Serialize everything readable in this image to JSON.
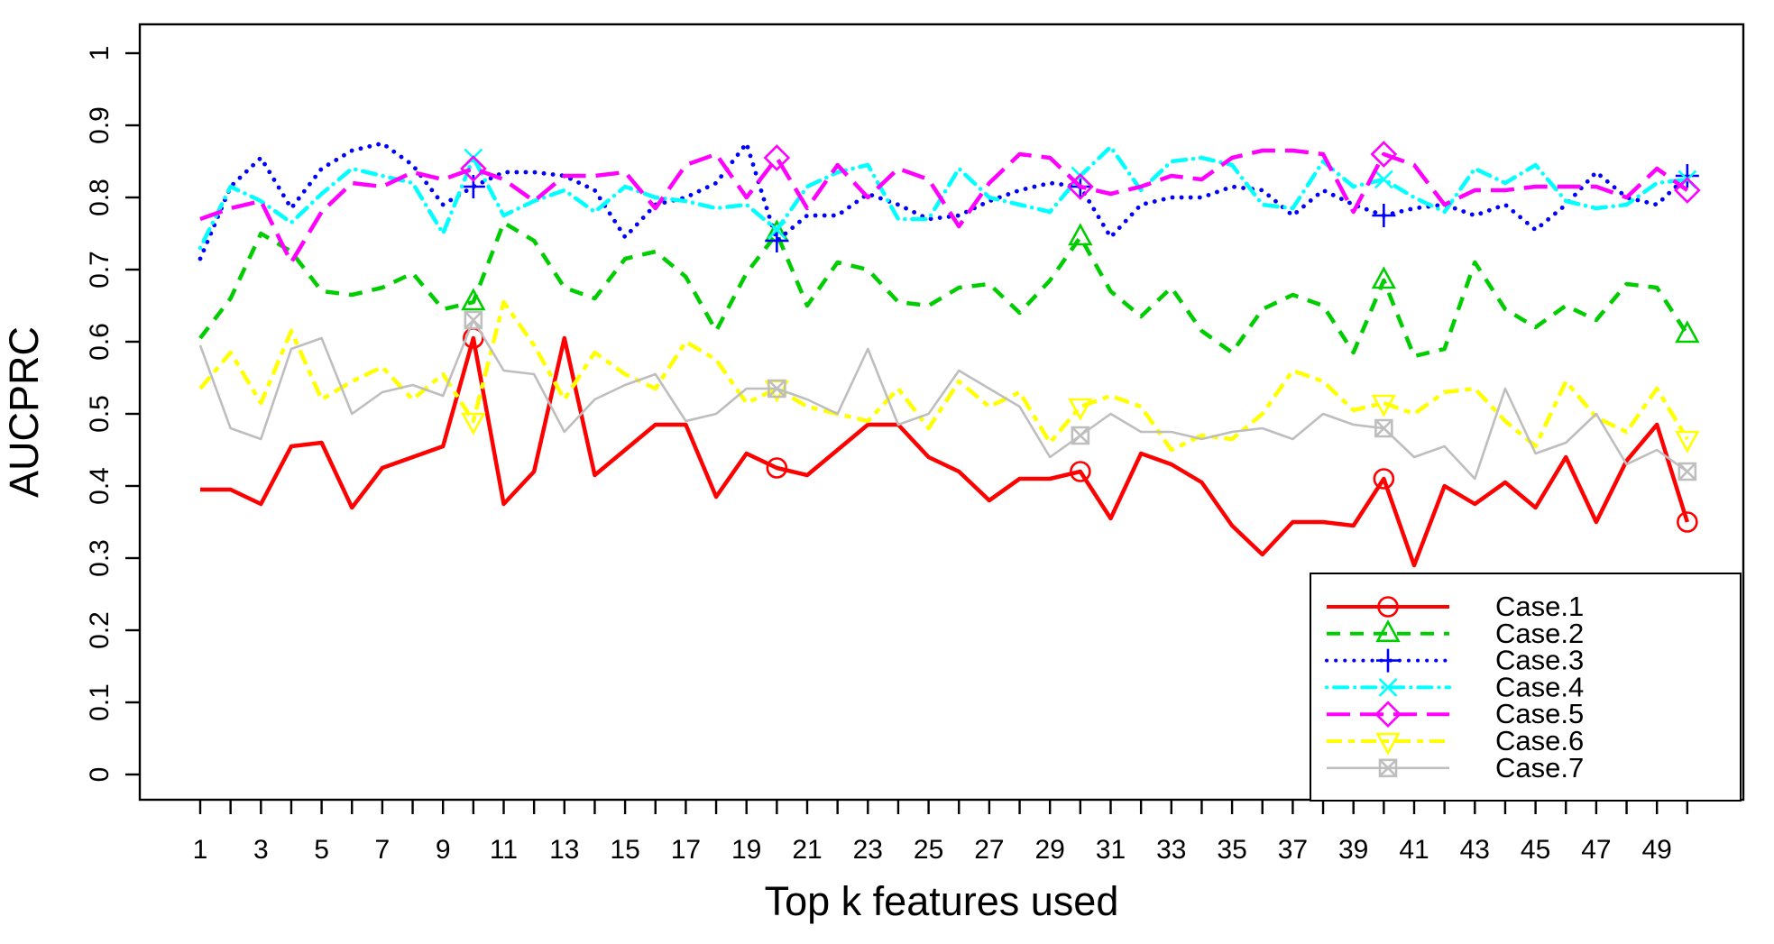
{
  "figure": {
    "background": "#FFFFFF",
    "frame_color": "#000000"
  },
  "chart_data": {
    "type": "line",
    "title": "",
    "xlabel": "Top k features used",
    "ylabel": "AUCPRC",
    "xlim": [
      1,
      50
    ],
    "ylim": [
      0,
      1
    ],
    "grid": "off",
    "legend_position": "bottom-right",
    "marker_every": 10,
    "x": [
      1,
      2,
      3,
      4,
      5,
      6,
      7,
      8,
      9,
      10,
      11,
      12,
      13,
      14,
      15,
      16,
      17,
      18,
      19,
      20,
      21,
      22,
      23,
      24,
      25,
      26,
      27,
      28,
      29,
      30,
      31,
      32,
      33,
      34,
      35,
      36,
      37,
      38,
      39,
      40,
      41,
      42,
      43,
      44,
      45,
      46,
      47,
      48,
      49,
      50
    ],
    "x_tick_labels": [
      "1",
      "3",
      "5",
      "7",
      "9",
      "11",
      "13",
      "15",
      "17",
      "19",
      "21",
      "23",
      "25",
      "27",
      "29",
      "31",
      "33",
      "35",
      "37",
      "39",
      "41",
      "43",
      "45",
      "47",
      "49"
    ],
    "y_ticks": [
      0,
      0.1,
      0.2,
      0.3,
      0.4,
      0.5,
      0.6,
      0.7,
      0.8,
      0.9,
      1
    ],
    "y_tick_labels": [
      "0",
      "0.1",
      "0.2",
      "0.3",
      "0.4",
      "0.5",
      "0.6",
      "0.7",
      "0.8",
      "0.9",
      "1"
    ],
    "series": [
      {
        "name": "Case.1",
        "color": "#FF0000",
        "linetype": "solid",
        "marker": "circle",
        "line_width": 4.5,
        "values": [
          0.395,
          0.395,
          0.375,
          0.455,
          0.46,
          0.37,
          0.425,
          0.44,
          0.455,
          0.605,
          0.375,
          0.42,
          0.605,
          0.415,
          0.45,
          0.485,
          0.485,
          0.385,
          0.445,
          0.425,
          0.415,
          0.45,
          0.485,
          0.485,
          0.44,
          0.42,
          0.38,
          0.41,
          0.41,
          0.42,
          0.355,
          0.445,
          0.43,
          0.405,
          0.345,
          0.305,
          0.35,
          0.35,
          0.345,
          0.41,
          0.29,
          0.4,
          0.375,
          0.405,
          0.37,
          0.44,
          0.35,
          0.435,
          0.485,
          0.35
        ]
      },
      {
        "name": "Case.2",
        "color": "#00CD00",
        "linetype": "dashed",
        "marker": "triangle-up",
        "line_width": 4.5,
        "values": [
          0.605,
          0.66,
          0.75,
          0.725,
          0.67,
          0.665,
          0.675,
          0.695,
          0.645,
          0.655,
          0.765,
          0.74,
          0.675,
          0.66,
          0.715,
          0.725,
          0.69,
          0.615,
          0.695,
          0.75,
          0.65,
          0.71,
          0.7,
          0.655,
          0.65,
          0.675,
          0.68,
          0.64,
          0.685,
          0.745,
          0.67,
          0.635,
          0.675,
          0.615,
          0.585,
          0.645,
          0.665,
          0.65,
          0.585,
          0.685,
          0.58,
          0.59,
          0.71,
          0.645,
          0.62,
          0.65,
          0.63,
          0.68,
          0.675,
          0.61
        ]
      },
      {
        "name": "Case.3",
        "color": "#0000FF",
        "linetype": "dotted",
        "marker": "plus",
        "line_width": 4.8,
        "values": [
          0.715,
          0.815,
          0.855,
          0.785,
          0.84,
          0.865,
          0.875,
          0.845,
          0.79,
          0.815,
          0.835,
          0.835,
          0.83,
          0.81,
          0.745,
          0.79,
          0.8,
          0.82,
          0.875,
          0.74,
          0.775,
          0.775,
          0.805,
          0.79,
          0.77,
          0.775,
          0.795,
          0.81,
          0.82,
          0.815,
          0.745,
          0.79,
          0.8,
          0.8,
          0.815,
          0.81,
          0.775,
          0.81,
          0.79,
          0.775,
          0.785,
          0.79,
          0.775,
          0.79,
          0.755,
          0.79,
          0.835,
          0.8,
          0.79,
          0.83
        ]
      },
      {
        "name": "Case.4",
        "color": "#00FFFF",
        "linetype": "dotdash",
        "marker": "x",
        "line_width": 4.5,
        "values": [
          0.73,
          0.815,
          0.795,
          0.765,
          0.805,
          0.84,
          0.83,
          0.82,
          0.75,
          0.855,
          0.775,
          0.795,
          0.81,
          0.78,
          0.815,
          0.8,
          0.795,
          0.785,
          0.79,
          0.755,
          0.815,
          0.835,
          0.845,
          0.77,
          0.77,
          0.84,
          0.8,
          0.79,
          0.78,
          0.83,
          0.87,
          0.81,
          0.85,
          0.855,
          0.845,
          0.79,
          0.785,
          0.85,
          0.815,
          0.825,
          0.8,
          0.78,
          0.84,
          0.82,
          0.845,
          0.795,
          0.785,
          0.79,
          0.82,
          0.825
        ]
      },
      {
        "name": "Case.5",
        "color": "#FF00FF",
        "linetype": "longdash",
        "marker": "diamond",
        "line_width": 4.5,
        "values": [
          0.77,
          0.785,
          0.795,
          0.71,
          0.78,
          0.82,
          0.815,
          0.835,
          0.825,
          0.84,
          0.825,
          0.795,
          0.83,
          0.83,
          0.835,
          0.785,
          0.845,
          0.86,
          0.8,
          0.855,
          0.785,
          0.845,
          0.8,
          0.84,
          0.825,
          0.76,
          0.82,
          0.86,
          0.855,
          0.815,
          0.805,
          0.815,
          0.83,
          0.825,
          0.855,
          0.865,
          0.865,
          0.86,
          0.78,
          0.86,
          0.845,
          0.79,
          0.81,
          0.81,
          0.815,
          0.815,
          0.815,
          0.8,
          0.84,
          0.81
        ]
      },
      {
        "name": "Case.6",
        "color": "#FFFF00",
        "linetype": "twodash",
        "marker": "triangle-down",
        "line_width": 4.5,
        "values": [
          0.535,
          0.585,
          0.515,
          0.615,
          0.52,
          0.545,
          0.565,
          0.52,
          0.555,
          0.49,
          0.655,
          0.595,
          0.52,
          0.585,
          0.555,
          0.535,
          0.6,
          0.575,
          0.515,
          0.535,
          0.51,
          0.5,
          0.49,
          0.535,
          0.48,
          0.545,
          0.51,
          0.53,
          0.46,
          0.51,
          0.525,
          0.51,
          0.45,
          0.47,
          0.465,
          0.5,
          0.56,
          0.545,
          0.505,
          0.515,
          0.5,
          0.53,
          0.535,
          0.49,
          0.455,
          0.545,
          0.495,
          0.475,
          0.535,
          0.465
        ]
      },
      {
        "name": "Case.7",
        "color": "#BEBEBE",
        "linetype": "solid",
        "marker": "square-x",
        "line_width": 2.6,
        "values": [
          0.595,
          0.48,
          0.465,
          0.59,
          0.605,
          0.5,
          0.53,
          0.54,
          0.525,
          0.63,
          0.56,
          0.555,
          0.475,
          0.52,
          0.54,
          0.555,
          0.49,
          0.5,
          0.535,
          0.535,
          0.52,
          0.5,
          0.59,
          0.485,
          0.5,
          0.56,
          0.535,
          0.51,
          0.44,
          0.47,
          0.5,
          0.475,
          0.475,
          0.465,
          0.475,
          0.48,
          0.465,
          0.5,
          0.485,
          0.48,
          0.44,
          0.455,
          0.41,
          0.535,
          0.445,
          0.46,
          0.5,
          0.43,
          0.45,
          0.42
        ]
      }
    ],
    "legend_entries": [
      "Case.1",
      "Case.2",
      "Case.3",
      "Case.4",
      "Case.5",
      "Case.6",
      "Case.7"
    ]
  }
}
